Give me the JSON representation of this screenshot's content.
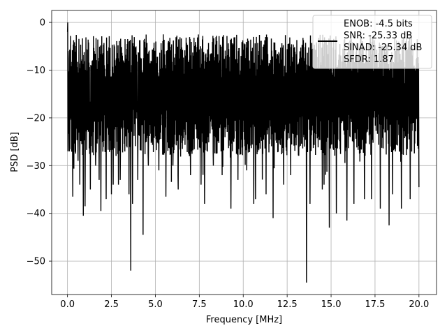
{
  "chart_data": {
    "type": "line",
    "title": "",
    "xlabel": "Frequency [MHz]",
    "ylabel": "PSD [dB]",
    "xlim": [
      -0.9,
      21.0
    ],
    "ylim": [
      -57.0,
      2.5
    ],
    "xticks": [
      0.0,
      2.5,
      5.0,
      7.5,
      10.0,
      12.5,
      15.0,
      17.5,
      20.0
    ],
    "xtick_labels": [
      "0.0",
      "2.5",
      "5.0",
      "7.5",
      "10.0",
      "12.5",
      "15.0",
      "17.5",
      "20.0"
    ],
    "yticks": [
      0,
      -10,
      -20,
      -30,
      -40,
      -50
    ],
    "ytick_labels": [
      "0",
      "−10",
      "−20",
      "−30",
      "−40",
      "−50"
    ],
    "grid": true,
    "legend_position": "top-right",
    "series": [
      {
        "name": "ENOB: -4.5 bits\nSNR: -25.33 dB\nSINAD: -25.34 dB\nSFDR: 1.87",
        "color": "#000000",
        "style": "dense-noise-spectrum",
        "x_range": [
          0.0,
          20.0
        ],
        "typical_upper_db": -7,
        "typical_lower_db": -25,
        "peaks": [
          {
            "x": 0.0,
            "y": 0.0
          }
        ],
        "dips": [
          {
            "x": 0.1,
            "y": -27
          },
          {
            "x": 0.3,
            "y": -36.5
          },
          {
            "x": 0.6,
            "y": -29
          },
          {
            "x": 0.7,
            "y": -34
          },
          {
            "x": 0.9,
            "y": -40.5
          },
          {
            "x": 1.0,
            "y": -38.5
          },
          {
            "x": 1.3,
            "y": -35
          },
          {
            "x": 1.6,
            "y": -30
          },
          {
            "x": 1.8,
            "y": -33
          },
          {
            "x": 1.9,
            "y": -39.5
          },
          {
            "x": 2.2,
            "y": -37
          },
          {
            "x": 2.5,
            "y": -36
          },
          {
            "x": 2.6,
            "y": -34
          },
          {
            "x": 2.9,
            "y": -34
          },
          {
            "x": 3.0,
            "y": -33
          },
          {
            "x": 3.5,
            "y": -36
          },
          {
            "x": 3.6,
            "y": -52
          },
          {
            "x": 3.7,
            "y": -38
          },
          {
            "x": 4.0,
            "y": -33
          },
          {
            "x": 4.3,
            "y": -44.5
          },
          {
            "x": 4.6,
            "y": -30
          },
          {
            "x": 5.2,
            "y": -31
          },
          {
            "x": 5.6,
            "y": -36.5
          },
          {
            "x": 6.0,
            "y": -30
          },
          {
            "x": 6.3,
            "y": -35
          },
          {
            "x": 7.0,
            "y": -32
          },
          {
            "x": 7.6,
            "y": -34
          },
          {
            "x": 7.8,
            "y": -38
          },
          {
            "x": 8.3,
            "y": -30
          },
          {
            "x": 8.8,
            "y": -32
          },
          {
            "x": 9.3,
            "y": -39
          },
          {
            "x": 9.7,
            "y": -33
          },
          {
            "x": 10.2,
            "y": -31
          },
          {
            "x": 10.6,
            "y": -38
          },
          {
            "x": 10.7,
            "y": -37
          },
          {
            "x": 11.3,
            "y": -36
          },
          {
            "x": 11.7,
            "y": -41
          },
          {
            "x": 12.3,
            "y": -34
          },
          {
            "x": 12.7,
            "y": -32
          },
          {
            "x": 13.6,
            "y": -54.5
          },
          {
            "x": 13.8,
            "y": -38
          },
          {
            "x": 14.5,
            "y": -35
          },
          {
            "x": 14.6,
            "y": -34
          },
          {
            "x": 14.9,
            "y": -43
          },
          {
            "x": 15.3,
            "y": -40
          },
          {
            "x": 15.9,
            "y": -41.5
          },
          {
            "x": 16.3,
            "y": -38
          },
          {
            "x": 16.9,
            "y": -37
          },
          {
            "x": 17.3,
            "y": -37
          },
          {
            "x": 17.8,
            "y": -39
          },
          {
            "x": 18.3,
            "y": -42.5
          },
          {
            "x": 18.5,
            "y": -36
          },
          {
            "x": 19.0,
            "y": -39
          },
          {
            "x": 19.5,
            "y": -37
          },
          {
            "x": 20.0,
            "y": -34.5
          }
        ]
      }
    ]
  },
  "legend": {
    "lines": [
      "ENOB: -4.5 bits",
      "SNR: -25.33 dB",
      "SINAD: -25.34 dB",
      "SFDR: 1.87"
    ]
  }
}
